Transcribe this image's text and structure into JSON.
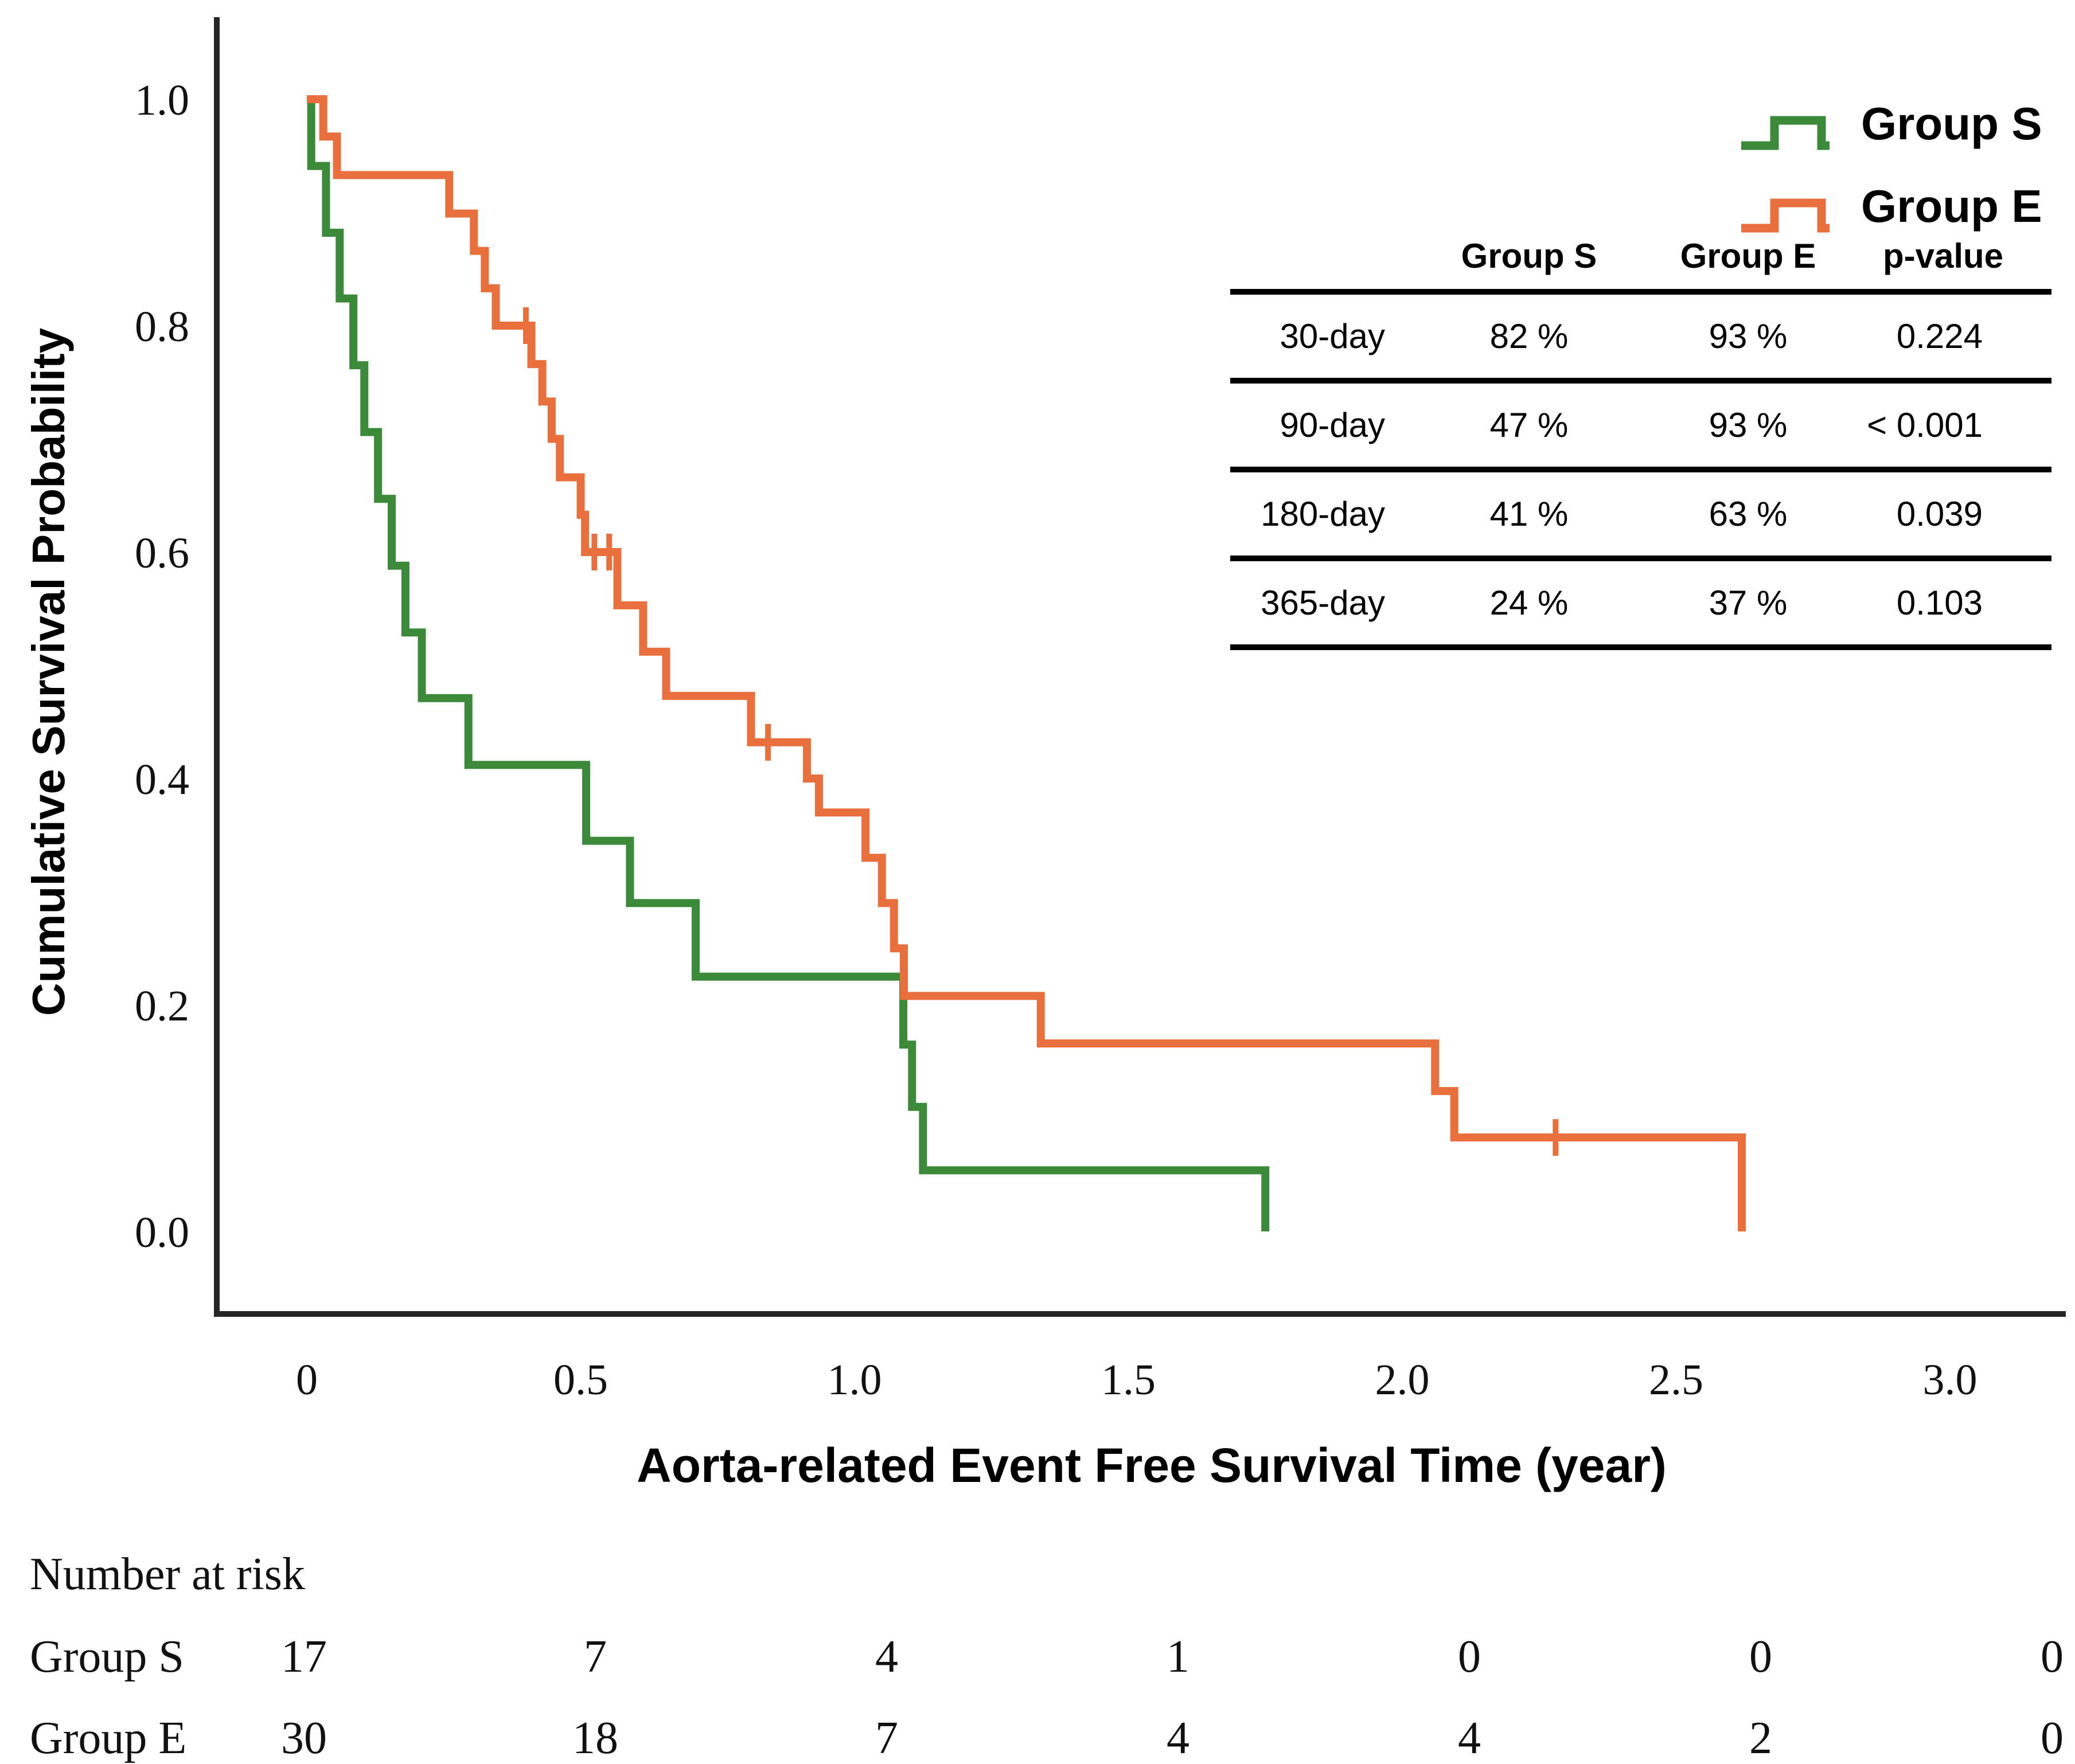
{
  "figure": {
    "y_axis_title": "Cumulative Survival Probability",
    "x_axis_title": "Aorta-related Event Free Survival Time (year)"
  },
  "colors": {
    "group_s": "#3a8a3a",
    "group_e": "#e9703c",
    "axis": "#262626",
    "text": "#111111"
  },
  "legend": {
    "items": [
      {
        "label": "Group S",
        "color": "#3a8a3a"
      },
      {
        "label": "Group E",
        "color": "#e9703c"
      }
    ]
  },
  "inset_table": {
    "headers": [
      "",
      "Group S",
      "Group E",
      "p-value"
    ],
    "rows": [
      {
        "time": "30-day",
        "group_s": "82 %",
        "group_e": "93 %",
        "p_value": "0.224"
      },
      {
        "time": "90-day",
        "group_s": "47 %",
        "group_e": "93 %",
        "p_value": "< 0.001"
      },
      {
        "time": "180-day",
        "group_s": "41 %",
        "group_e": "63 %",
        "p_value": "0.039"
      },
      {
        "time": "365-day",
        "group_s": "24 %",
        "group_e": "37 %",
        "p_value": "0.103"
      }
    ]
  },
  "chart_data": {
    "type": "line",
    "subtype": "kaplan-meier-step",
    "title": "",
    "xlabel": "Aorta-related Event Free Survival Time (year)",
    "ylabel": "Cumulative Survival Probability",
    "xlim": [
      0,
      3.2
    ],
    "ylim": [
      0.0,
      1.0
    ],
    "grid": false,
    "legend_position": "top-right",
    "x_ticks": [
      0,
      0.5,
      1.0,
      1.5,
      2.0,
      2.5,
      3.0
    ],
    "x_tick_labels": [
      "0",
      "0.5",
      "1.0",
      "1.5",
      "2.0",
      "2.5",
      "3.0"
    ],
    "y_ticks": [
      0.0,
      0.2,
      0.4,
      0.6,
      0.8,
      1.0
    ],
    "y_tick_labels": [
      "0.0",
      "0.2",
      "0.4",
      "0.6",
      "0.8",
      "1.0"
    ],
    "series": [
      {
        "name": "Group S",
        "color": "#3a8a3a",
        "step_points": [
          [
            0,
            1.0
          ],
          [
            0.008,
            0.941
          ],
          [
            0.035,
            0.882
          ],
          [
            0.06,
            0.824
          ],
          [
            0.085,
            0.765
          ],
          [
            0.105,
            0.706
          ],
          [
            0.13,
            0.647
          ],
          [
            0.155,
            0.588
          ],
          [
            0.18,
            0.529
          ],
          [
            0.21,
            0.471
          ],
          [
            0.295,
            0.412
          ],
          [
            0.51,
            0.345
          ],
          [
            0.59,
            0.29
          ],
          [
            0.71,
            0.225
          ],
          [
            1.089,
            0.165
          ],
          [
            1.105,
            0.11
          ],
          [
            1.125,
            0.054
          ],
          [
            1.75,
            0.0
          ]
        ],
        "censors": []
      },
      {
        "name": "Group E",
        "color": "#e9703c",
        "step_points": [
          [
            0,
            1.0
          ],
          [
            0.03,
            0.967
          ],
          [
            0.055,
            0.933
          ],
          [
            0.26,
            0.899
          ],
          [
            0.305,
            0.866
          ],
          [
            0.325,
            0.833
          ],
          [
            0.345,
            0.8
          ],
          [
            0.41,
            0.766
          ],
          [
            0.43,
            0.733
          ],
          [
            0.447,
            0.7
          ],
          [
            0.462,
            0.666
          ],
          [
            0.5,
            0.633
          ],
          [
            0.508,
            0.6
          ],
          [
            0.567,
            0.553
          ],
          [
            0.614,
            0.512
          ],
          [
            0.656,
            0.473
          ],
          [
            0.811,
            0.432
          ],
          [
            0.913,
            0.4
          ],
          [
            0.935,
            0.37
          ],
          [
            1.02,
            0.33
          ],
          [
            1.05,
            0.29
          ],
          [
            1.072,
            0.25
          ],
          [
            1.09,
            0.208
          ],
          [
            1.34,
            0.166
          ],
          [
            2.06,
            0.124
          ],
          [
            2.095,
            0.083
          ],
          [
            2.62,
            0.0
          ]
        ],
        "censors": [
          [
            0.4,
            0.8
          ],
          [
            0.525,
            0.6
          ],
          [
            0.552,
            0.6
          ],
          [
            0.842,
            0.432
          ],
          [
            2.28,
            0.083
          ]
        ]
      }
    ]
  },
  "number_at_risk": {
    "title": "Number at risk",
    "times": [
      0,
      0.5,
      1.0,
      1.5,
      2.0,
      2.5,
      3.0
    ],
    "rows": [
      {
        "label": "Group S",
        "counts": [
          "17",
          "7",
          "4",
          "1",
          "0",
          "0",
          "0"
        ]
      },
      {
        "label": "Group E",
        "counts": [
          "30",
          "18",
          "7",
          "4",
          "4",
          "2",
          "0"
        ]
      }
    ]
  }
}
